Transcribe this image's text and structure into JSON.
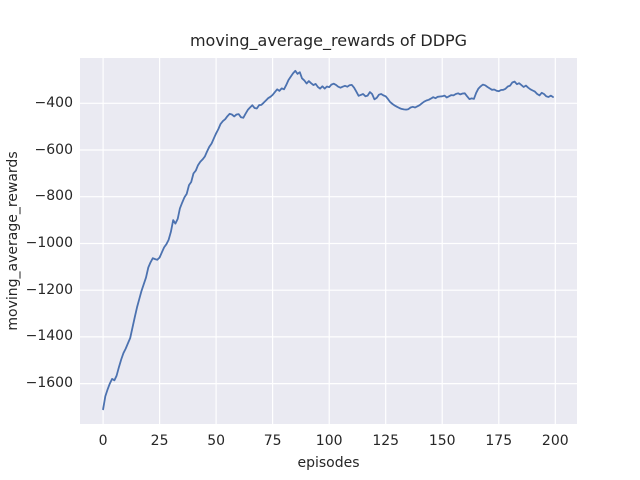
{
  "chart_data": {
    "type": "line",
    "title": "moving_average_rewards of DDPG",
    "xlabel": "episodes",
    "ylabel": "moving_average_rewards",
    "x_ticks": [
      0,
      25,
      50,
      75,
      100,
      125,
      150,
      175,
      200
    ],
    "x_tick_labels": [
      "0",
      "25",
      "50",
      "75",
      "100",
      "125",
      "150",
      "175",
      "200"
    ],
    "y_ticks": [
      -400,
      -600,
      -800,
      -1000,
      -1200,
      -1400,
      -1600
    ],
    "y_tick_labels": [
      "−400",
      "−600",
      "−800",
      "−1000",
      "−1200",
      "−1400",
      "−1600"
    ],
    "xlim": [
      -10.2,
      209.6
    ],
    "ylim": [
      -1773,
      -206
    ],
    "grid": true,
    "legend_position": "none",
    "style": {
      "figure_bg": "#ffffff",
      "plot_bg": "#eaeaf2",
      "grid_color": "#ffffff",
      "line_color": "#4c72b0",
      "text_color": "#262626"
    },
    "series": [
      {
        "name": "DDPG moving average rewards",
        "x_start": 0,
        "x_step": 1,
        "values": [
          -1710,
          -1655,
          -1625,
          -1600,
          -1580,
          -1586,
          -1566,
          -1530,
          -1497,
          -1470,
          -1450,
          -1428,
          -1405,
          -1360,
          -1317,
          -1274,
          -1239,
          -1203,
          -1174,
          -1146,
          -1103,
          -1081,
          -1063,
          -1067,
          -1070,
          -1060,
          -1038,
          -1017,
          -1003,
          -985,
          -950,
          -900,
          -915,
          -895,
          -850,
          -825,
          -802,
          -788,
          -750,
          -737,
          -700,
          -688,
          -665,
          -650,
          -640,
          -628,
          -606,
          -586,
          -572,
          -550,
          -529,
          -510,
          -488,
          -476,
          -468,
          -455,
          -445,
          -448,
          -456,
          -448,
          -446,
          -460,
          -462,
          -445,
          -428,
          -418,
          -408,
          -420,
          -422,
          -408,
          -407,
          -398,
          -388,
          -378,
          -372,
          -364,
          -352,
          -340,
          -347,
          -336,
          -340,
          -322,
          -300,
          -286,
          -272,
          -261,
          -274,
          -267,
          -293,
          -302,
          -315,
          -305,
          -314,
          -322,
          -317,
          -330,
          -337,
          -327,
          -337,
          -328,
          -331,
          -320,
          -316,
          -321,
          -329,
          -333,
          -329,
          -325,
          -329,
          -323,
          -321,
          -333,
          -350,
          -368,
          -364,
          -360,
          -370,
          -367,
          -352,
          -360,
          -383,
          -377,
          -363,
          -360,
          -366,
          -370,
          -382,
          -395,
          -403,
          -410,
          -415,
          -420,
          -424,
          -426,
          -427,
          -425,
          -418,
          -415,
          -418,
          -413,
          -408,
          -400,
          -393,
          -388,
          -385,
          -380,
          -374,
          -378,
          -372,
          -371,
          -370,
          -367,
          -375,
          -370,
          -365,
          -366,
          -360,
          -357,
          -362,
          -358,
          -357,
          -370,
          -382,
          -379,
          -381,
          -355,
          -337,
          -327,
          -320,
          -323,
          -330,
          -336,
          -342,
          -341,
          -346,
          -348,
          -343,
          -342,
          -338,
          -328,
          -324,
          -311,
          -307,
          -318,
          -314,
          -322,
          -330,
          -324,
          -333,
          -340,
          -345,
          -350,
          -360,
          -366,
          -355,
          -360,
          -370,
          -373,
          -367,
          -373
        ]
      }
    ]
  }
}
